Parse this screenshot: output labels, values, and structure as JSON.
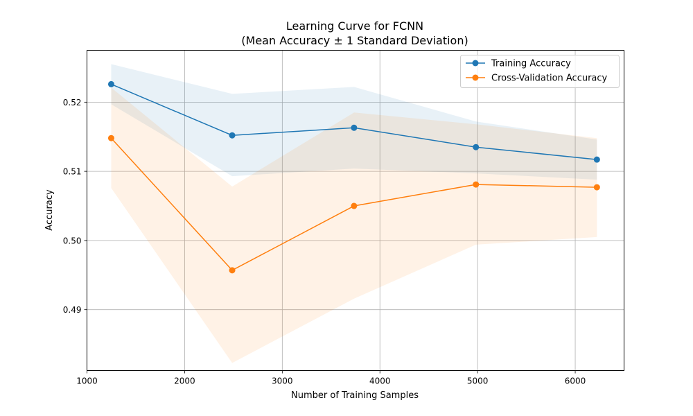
{
  "chart_data": {
    "type": "line",
    "title": "Learning Curve for FCNN",
    "subtitle": "(Mean Accuracy ± 1 Standard Deviation)",
    "xlabel": "Number of Training Samples",
    "ylabel": "Accuracy",
    "xlim": [
      1000,
      6500
    ],
    "ylim": [
      0.4812,
      0.5275
    ],
    "xticks": [
      1000,
      2000,
      3000,
      4000,
      5000,
      6000
    ],
    "yticks": [
      0.49,
      0.5,
      0.51,
      0.52
    ],
    "grid": true,
    "legend_position": "top-right",
    "x": [
      1248,
      2487,
      3735,
      4983,
      6222
    ],
    "series": [
      {
        "name": "Training Accuracy",
        "color": "#1f77b4",
        "values": [
          0.5226,
          0.5152,
          0.5163,
          0.5135,
          0.5117
        ],
        "band_lower": [
          0.5197,
          0.5093,
          0.5104,
          0.5097,
          0.5088
        ],
        "band_upper": [
          0.5255,
          0.5212,
          0.5222,
          0.5172,
          0.5146
        ]
      },
      {
        "name": "Cross-Validation Accuracy",
        "color": "#ff7f0e",
        "values": [
          0.5148,
          0.4957,
          0.505,
          0.5081,
          0.5077
        ],
        "band_lower": [
          0.5076,
          0.4823,
          0.4916,
          0.4994,
          0.5005
        ],
        "band_upper": [
          0.5221,
          0.5078,
          0.5185,
          0.5168,
          0.5148
        ]
      }
    ]
  }
}
